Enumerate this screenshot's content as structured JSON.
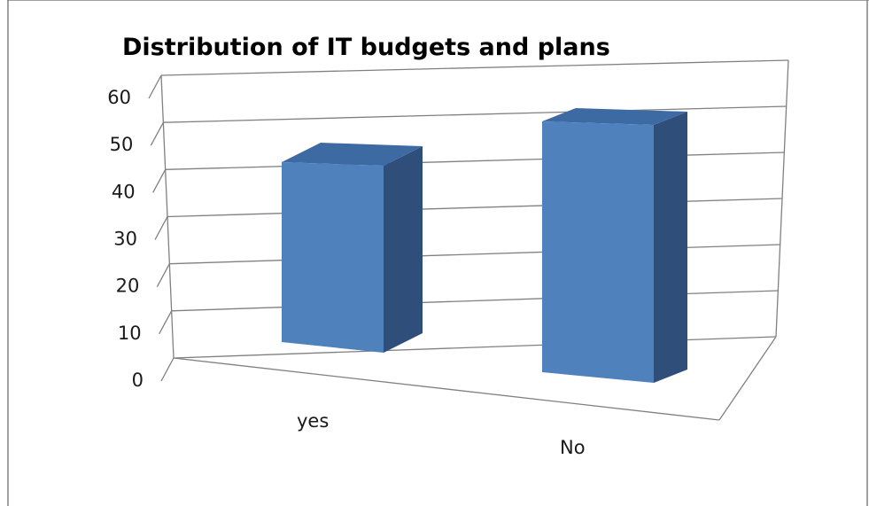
{
  "chart_data": {
    "type": "bar",
    "title": "Distribution of IT budgets and plans",
    "categories": [
      "yes",
      "No"
    ],
    "values": [
      41,
      57
    ],
    "ylim": [
      0,
      60
    ],
    "yticks": [
      0,
      10,
      20,
      30,
      40,
      50,
      60
    ],
    "xlabel": "",
    "ylabel": "",
    "grid": true,
    "legend": "none",
    "style": "3d-column"
  },
  "colors": {
    "bar_front": "#4f81bd",
    "bar_side": "#2f4f7a",
    "bar_top": "#3d6aa3",
    "gridline": "#808080",
    "frame": "#808080"
  }
}
